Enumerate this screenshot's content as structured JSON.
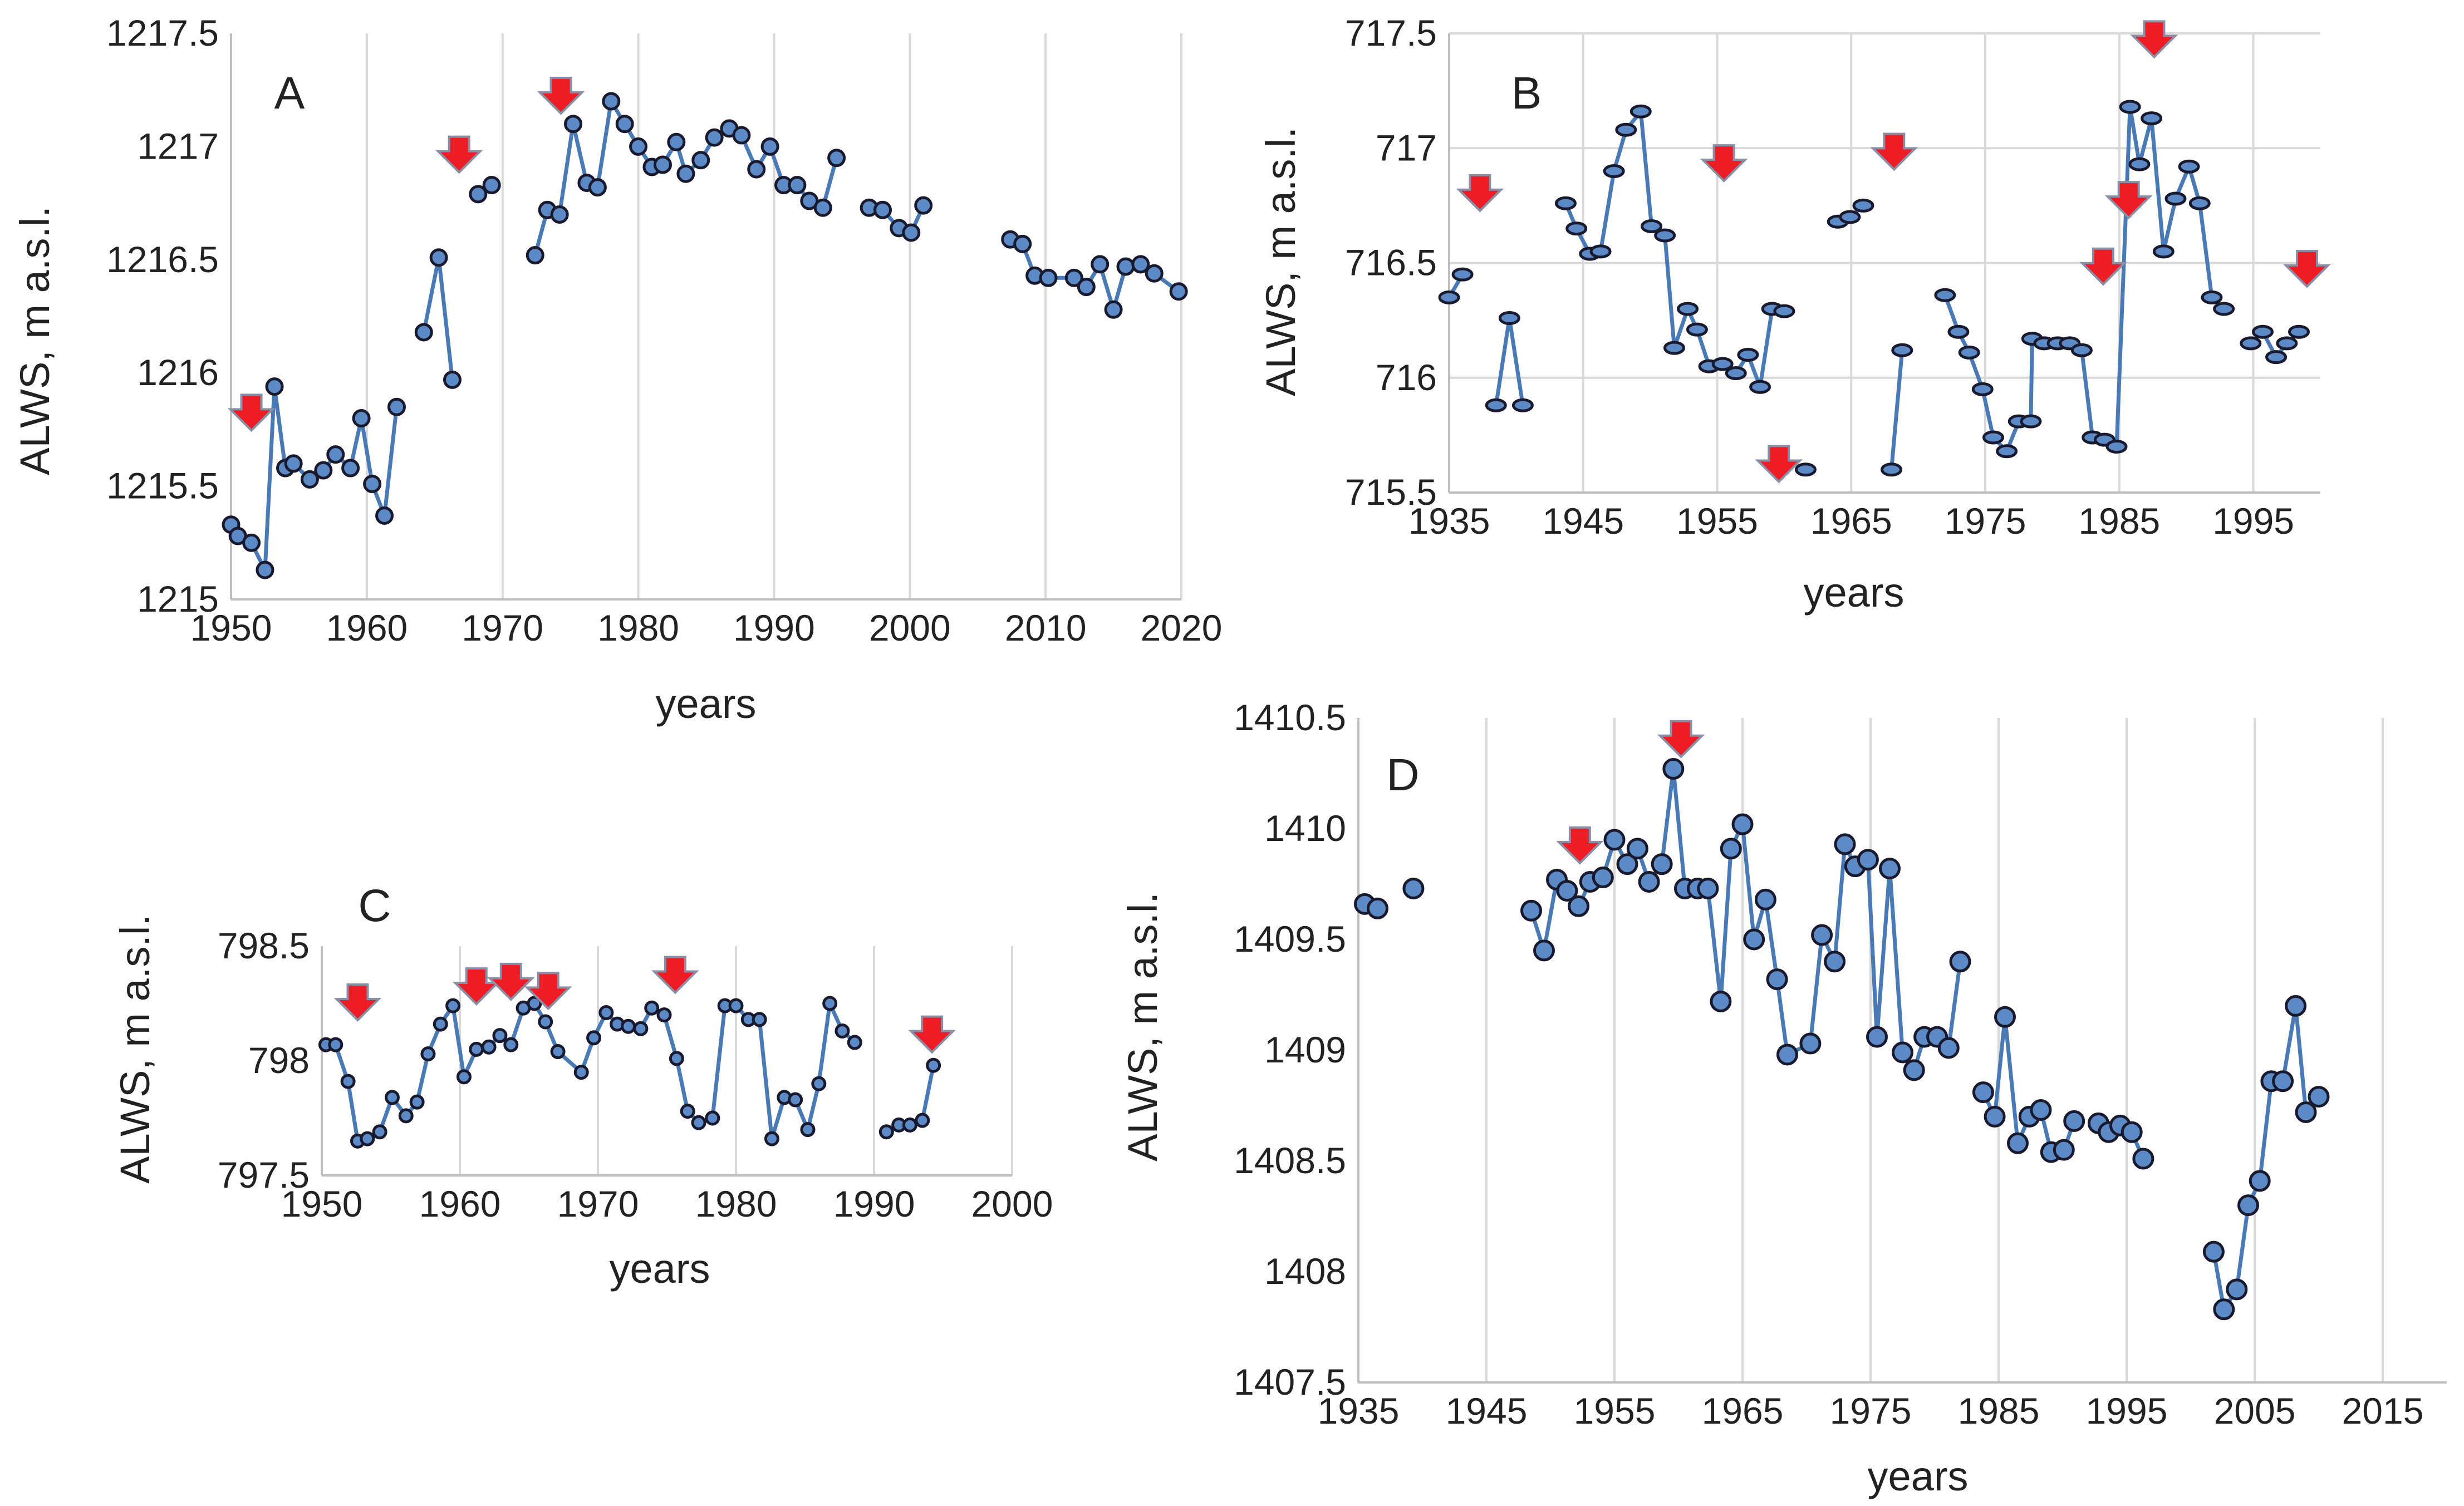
{
  "chart_data": [
    {
      "id": "A",
      "type": "line",
      "panel_label": "A",
      "xlabel": "years",
      "ylabel": "ALWS, m a.s.l.",
      "xlim": [
        1950,
        2020
      ],
      "ylim": [
        1215,
        1217.5
      ],
      "xticks": [
        1950,
        1960,
        1970,
        1980,
        1990,
        2000,
        2010,
        2020
      ],
      "yticks": [
        1215,
        1215.5,
        1216,
        1216.5,
        1217,
        1217.5
      ],
      "ytick_labels": [
        "1215",
        "1215.5",
        "1216",
        "1216.5",
        "1217",
        "1217.5"
      ],
      "grid": "vertical",
      "segments": [
        [
          [
            1950,
            1215.33
          ],
          [
            1950.5,
            1215.28
          ],
          [
            1951.5,
            1215.25
          ],
          [
            1952.5,
            1215.13
          ],
          [
            1953.2,
            1215.94
          ],
          [
            1954,
            1215.58
          ],
          [
            1954.6,
            1215.6
          ],
          [
            1955.8,
            1215.53
          ],
          [
            1956.8,
            1215.57
          ],
          [
            1957.7,
            1215.64
          ],
          [
            1958.8,
            1215.58
          ],
          [
            1959.6,
            1215.8
          ],
          [
            1960.4,
            1215.51
          ],
          [
            1961.3,
            1215.37
          ],
          [
            1962.2,
            1215.85
          ]
        ],
        [
          [
            1964.2,
            1216.18
          ],
          [
            1965.3,
            1216.51
          ],
          [
            1966.3,
            1215.97
          ]
        ],
        [
          [
            1968.2,
            1216.79
          ],
          [
            1969.2,
            1216.83
          ]
        ],
        [
          [
            1972.4,
            1216.52
          ],
          [
            1973.3,
            1216.72
          ],
          [
            1974.2,
            1216.7
          ],
          [
            1975.2,
            1217.1
          ],
          [
            1976.2,
            1216.84
          ],
          [
            1977,
            1216.82
          ],
          [
            1978,
            1217.2
          ],
          [
            1979,
            1217.1
          ],
          [
            1980,
            1217.0
          ],
          [
            1981,
            1216.91
          ],
          [
            1981.8,
            1216.92
          ],
          [
            1982.8,
            1217.02
          ],
          [
            1983.5,
            1216.88
          ],
          [
            1984.6,
            1216.94
          ],
          [
            1985.6,
            1217.04
          ],
          [
            1986.7,
            1217.08
          ],
          [
            1987.6,
            1217.05
          ],
          [
            1988.7,
            1216.9
          ],
          [
            1989.7,
            1217.0
          ],
          [
            1990.7,
            1216.83
          ],
          [
            1991.7,
            1216.83
          ],
          [
            1992.6,
            1216.76
          ],
          [
            1993.6,
            1216.73
          ],
          [
            1994.6,
            1216.95
          ]
        ],
        [
          [
            1997,
            1216.73
          ],
          [
            1998,
            1216.72
          ],
          [
            1999.2,
            1216.64
          ],
          [
            2000.1,
            1216.62
          ],
          [
            2001,
            1216.74
          ]
        ],
        [
          [
            2007.4,
            1216.59
          ],
          [
            2008.3,
            1216.57
          ],
          [
            2009.2,
            1216.43
          ],
          [
            2010.2,
            1216.42
          ],
          [
            2012.1,
            1216.42
          ],
          [
            2013,
            1216.38
          ],
          [
            2014,
            1216.48
          ],
          [
            2015,
            1216.28
          ],
          [
            2015.9,
            1216.47
          ],
          [
            2017,
            1216.48
          ],
          [
            2018,
            1216.44
          ],
          [
            2019.8,
            1216.36
          ]
        ]
      ],
      "arrows": [
        [
          1951.5,
          1215.82
        ],
        [
          1966.8,
          1216.96
        ],
        [
          1974.3,
          1217.22
        ]
      ]
    },
    {
      "id": "B",
      "type": "line",
      "panel_label": "B",
      "xlabel": "years",
      "ylabel": "ALWS, m a.s.l.",
      "xlim": [
        1935,
        2000
      ],
      "ylim": [
        715.5,
        717.5
      ],
      "xticks": [
        1935,
        1945,
        1955,
        1965,
        1975,
        1985,
        1995
      ],
      "yticks": [
        715.5,
        716,
        716.5,
        717,
        717.5
      ],
      "ytick_labels": [
        "715.5",
        "716",
        "716.5",
        "717",
        "717.5"
      ],
      "grid": "both",
      "segments": [
        [
          [
            1935,
            716.35
          ],
          [
            1936,
            716.45
          ]
        ],
        [
          [
            1938.5,
            715.88
          ],
          [
            1939.5,
            716.26
          ],
          [
            1940.5,
            715.88
          ]
        ],
        [
          [
            1943.7,
            716.76
          ],
          [
            1944.5,
            716.65
          ],
          [
            1945.5,
            716.54
          ],
          [
            1946.3,
            716.55
          ],
          [
            1947.3,
            716.9
          ],
          [
            1948.2,
            717.08
          ],
          [
            1949.3,
            717.16
          ],
          [
            1950.1,
            716.66
          ],
          [
            1951.1,
            716.62
          ],
          [
            1951.8,
            716.13
          ],
          [
            1952.8,
            716.3
          ],
          [
            1953.5,
            716.21
          ],
          [
            1954.4,
            716.05
          ],
          [
            1955.4,
            716.06
          ],
          [
            1956.4,
            716.02
          ],
          [
            1957.3,
            716.1
          ],
          [
            1958.2,
            715.96
          ],
          [
            1959.1,
            716.3
          ],
          [
            1960,
            716.29
          ]
        ],
        [
          [
            1961.6,
            715.6
          ]
        ],
        [
          [
            1964,
            716.68
          ],
          [
            1964.9,
            716.7
          ],
          [
            1965.9,
            716.75
          ]
        ],
        [
          [
            1968,
            715.6
          ],
          [
            1968.8,
            716.12
          ]
        ],
        [
          [
            1972,
            716.36
          ],
          [
            1973,
            716.2
          ],
          [
            1973.8,
            716.11
          ],
          [
            1974.8,
            715.95
          ],
          [
            1975.6,
            715.74
          ],
          [
            1976.6,
            715.68
          ],
          [
            1977.5,
            715.81
          ],
          [
            1978.4,
            715.81
          ],
          [
            1978.5,
            716.17
          ],
          [
            1979.4,
            716.15
          ],
          [
            1980.4,
            716.15
          ],
          [
            1981.3,
            716.15
          ],
          [
            1982.2,
            716.12
          ],
          [
            1983,
            715.74
          ],
          [
            1983.9,
            715.73
          ],
          [
            1984.8,
            715.7
          ],
          [
            1985.8,
            717.18
          ],
          [
            1986.5,
            716.93
          ],
          [
            1987.4,
            717.13
          ],
          [
            1988.3,
            716.55
          ],
          [
            1989.2,
            716.78
          ],
          [
            1990.2,
            716.92
          ],
          [
            1991,
            716.76
          ],
          [
            1991.9,
            716.35
          ],
          [
            1992.8,
            716.3
          ]
        ],
        [
          [
            1994.8,
            716.15
          ],
          [
            1995.7,
            716.2
          ],
          [
            1996.7,
            716.09
          ],
          [
            1997.5,
            716.15
          ],
          [
            1998.4,
            716.2
          ]
        ]
      ],
      "arrows": [
        [
          1937.3,
          716.8
        ],
        [
          1955.5,
          716.93
        ],
        [
          1959.6,
          715.62
        ],
        [
          1968.2,
          716.98
        ],
        [
          1983.8,
          716.48
        ],
        [
          1985.7,
          716.77
        ],
        [
          1987.6,
          717.47
        ],
        [
          1999,
          716.47
        ]
      ]
    },
    {
      "id": "C",
      "type": "line",
      "panel_label": "C",
      "xlabel": "years",
      "ylabel": "ALWS, m a.s.l.",
      "xlim": [
        1950,
        2000
      ],
      "ylim": [
        797.5,
        798.5
      ],
      "xticks": [
        1950,
        1960,
        1970,
        1980,
        1990,
        2000
      ],
      "yticks": [
        797.5,
        798,
        798.5
      ],
      "ytick_labels": [
        "797.5",
        "798",
        "798.5"
      ],
      "grid": "vertical",
      "segments": [
        [
          [
            1950.3,
            798.07
          ],
          [
            1951,
            798.07
          ],
          [
            1951.9,
            797.91
          ],
          [
            1952.6,
            797.65
          ],
          [
            1953.3,
            797.66
          ],
          [
            1954.2,
            797.69
          ],
          [
            1955.1,
            797.84
          ],
          [
            1956.1,
            797.76
          ],
          [
            1956.9,
            797.82
          ],
          [
            1957.7,
            798.03
          ],
          [
            1958.6,
            798.16
          ],
          [
            1959.5,
            798.24
          ],
          [
            1960.3,
            797.93
          ],
          [
            1961.2,
            798.05
          ],
          [
            1962.1,
            798.06
          ],
          [
            1962.9,
            798.11
          ],
          [
            1963.7,
            798.07
          ],
          [
            1964.6,
            798.23
          ],
          [
            1965.4,
            798.25
          ],
          [
            1966.2,
            798.17
          ],
          [
            1967.1,
            798.04
          ],
          [
            1968.8,
            797.95
          ],
          [
            1969.7,
            798.1
          ],
          [
            1970.6,
            798.21
          ],
          [
            1971.4,
            798.16
          ],
          [
            1972.2,
            798.15
          ],
          [
            1973.1,
            798.14
          ],
          [
            1973.9,
            798.23
          ],
          [
            1974.8,
            798.2
          ],
          [
            1975.7,
            798.01
          ],
          [
            1976.5,
            797.78
          ],
          [
            1977.3,
            797.73
          ],
          [
            1978.3,
            797.75
          ],
          [
            1979.2,
            798.24
          ],
          [
            1980,
            798.24
          ],
          [
            1980.9,
            798.18
          ],
          [
            1981.7,
            798.18
          ],
          [
            1982.6,
            797.66
          ],
          [
            1983.5,
            797.84
          ],
          [
            1984.3,
            797.83
          ],
          [
            1985.2,
            797.7
          ],
          [
            1986,
            797.9
          ],
          [
            1986.8,
            798.25
          ],
          [
            1987.7,
            798.13
          ],
          [
            1988.6,
            798.08
          ]
        ],
        [
          [
            1990.9,
            797.69
          ],
          [
            1991.8,
            797.72
          ],
          [
            1992.6,
            797.72
          ],
          [
            1993.5,
            797.74
          ],
          [
            1994.3,
            797.98
          ]
        ]
      ],
      "arrows": [
        [
          1952.6,
          798.25
        ],
        [
          1961.2,
          798.32
        ],
        [
          1963.7,
          798.34
        ],
        [
          1966.4,
          798.3
        ],
        [
          1975.6,
          798.37
        ],
        [
          1994.2,
          798.11
        ]
      ]
    },
    {
      "id": "D",
      "type": "line",
      "panel_label": "D",
      "xlabel": "years",
      "ylabel": "ALWS, m a.s.l.",
      "xlim": [
        1935,
        2020
      ],
      "ylim": [
        1407.5,
        1410.5
      ],
      "xticks": [
        1935,
        1945,
        1955,
        1965,
        1975,
        1985,
        1995,
        2005,
        2015
      ],
      "yticks": [
        1407.5,
        1408,
        1408.5,
        1409,
        1409.5,
        1410,
        1410.5
      ],
      "ytick_labels": [
        "1407.5",
        "1408",
        "1408.5",
        "1409",
        "1409.5",
        "1410",
        "1410.5"
      ],
      "grid": "vertical",
      "segments": [
        [
          [
            1935.5,
            1409.66
          ],
          [
            1936.5,
            1409.64
          ]
        ],
        [
          [
            1939.3,
            1409.73
          ]
        ],
        [
          [
            1948.5,
            1409.63
          ],
          [
            1949.5,
            1409.45
          ],
          [
            1950.5,
            1409.77
          ],
          [
            1951.3,
            1409.72
          ],
          [
            1952.2,
            1409.65
          ],
          [
            1953.1,
            1409.76
          ],
          [
            1954.1,
            1409.78
          ],
          [
            1955,
            1409.95
          ],
          [
            1956,
            1409.84
          ],
          [
            1956.8,
            1409.91
          ],
          [
            1957.7,
            1409.76
          ],
          [
            1958.7,
            1409.84
          ],
          [
            1959.6,
            1410.27
          ],
          [
            1960.5,
            1409.73
          ],
          [
            1961.5,
            1409.73
          ],
          [
            1962.3,
            1409.73
          ],
          [
            1963.3,
            1409.22
          ],
          [
            1964.1,
            1409.91
          ],
          [
            1965,
            1410.02
          ],
          [
            1965.9,
            1409.5
          ],
          [
            1966.8,
            1409.68
          ],
          [
            1967.7,
            1409.32
          ],
          [
            1968.5,
            1408.98
          ],
          [
            1970.3,
            1409.03
          ],
          [
            1971.2,
            1409.52
          ],
          [
            1972.2,
            1409.4
          ],
          [
            1973,
            1409.93
          ],
          [
            1973.8,
            1409.83
          ],
          [
            1974.8,
            1409.86
          ],
          [
            1975.5,
            1409.06
          ],
          [
            1976.5,
            1409.82
          ],
          [
            1977.5,
            1408.99
          ],
          [
            1978.4,
            1408.91
          ],
          [
            1979.2,
            1409.06
          ],
          [
            1980.2,
            1409.06
          ],
          [
            1981.1,
            1409.01
          ],
          [
            1982,
            1409.4
          ]
        ],
        [
          [
            1983.8,
            1408.81
          ],
          [
            1984.7,
            1408.7
          ],
          [
            1985.5,
            1409.15
          ],
          [
            1986.5,
            1408.58
          ],
          [
            1987.4,
            1408.7
          ],
          [
            1988.3,
            1408.73
          ],
          [
            1989.1,
            1408.54
          ],
          [
            1990.1,
            1408.55
          ],
          [
            1990.9,
            1408.68
          ]
        ],
        [
          [
            1992.8,
            1408.67
          ],
          [
            1993.6,
            1408.63
          ],
          [
            1994.5,
            1408.66
          ],
          [
            1995.4,
            1408.63
          ],
          [
            1996.3,
            1408.51
          ]
        ],
        [
          [
            2001.8,
            1408.09
          ],
          [
            2002.6,
            1407.83
          ],
          [
            2003.6,
            1407.92
          ],
          [
            2004.5,
            1408.3
          ],
          [
            2005.4,
            1408.41
          ],
          [
            2006.3,
            1408.86
          ],
          [
            2007.2,
            1408.86
          ],
          [
            2008.2,
            1409.2
          ],
          [
            2009,
            1408.72
          ],
          [
            2010,
            1408.79
          ]
        ]
      ],
      "arrows": [
        [
          1952.3,
          1409.92
        ],
        [
          1960.2,
          1410.4
        ]
      ]
    }
  ]
}
